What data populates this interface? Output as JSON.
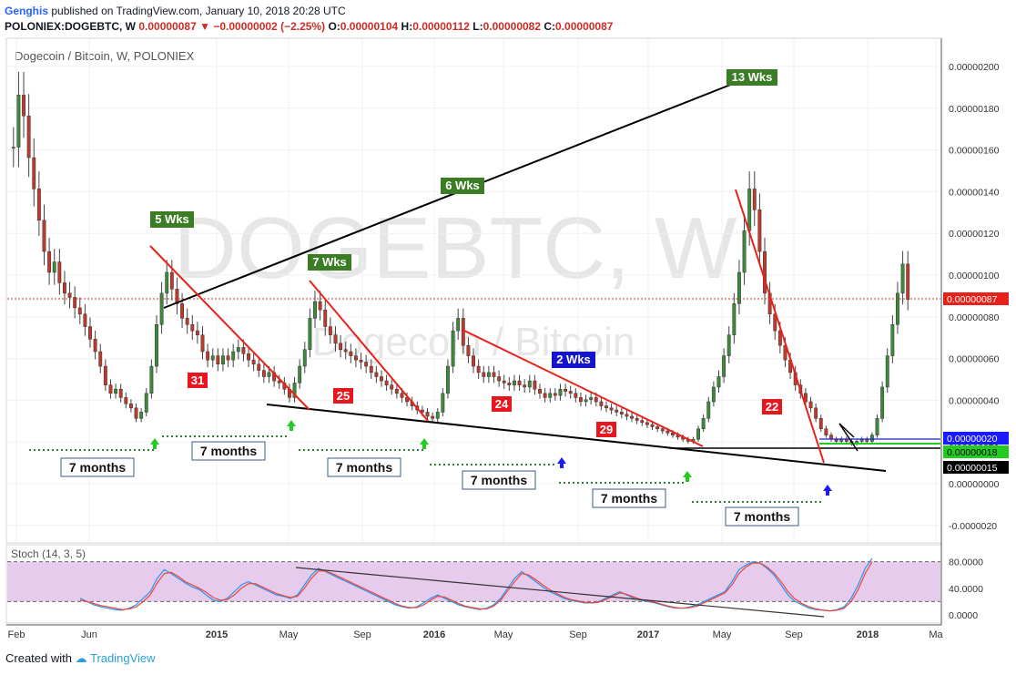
{
  "header": {
    "author": "Genghis",
    "published": "published on TradingView.com, January 10, 2018 20:28 UTC",
    "symbol": "POLONIEX:DOGEBTC, W",
    "last": "0.00000087",
    "change": "−0.00000002 (−2.25%)",
    "o_label": "O:",
    "o": "0.00000104",
    "h_label": "H:",
    "h": "0.00000112",
    "l_label": "L:",
    "l": "0.00000082",
    "c_label": "C:",
    "c": "0.00000087"
  },
  "footer": {
    "created_with": "Created with",
    "brand": "TradingView"
  },
  "colors": {
    "up": "#3c8a3a",
    "down": "#c0392b",
    "trend_red": "#e8211a",
    "stoch_k": "#2196f3",
    "stoch_d": "#f44336",
    "stoch_band": "#e1bee7",
    "green_label": "#3a7d25",
    "blue_label": "#1414cc"
  },
  "chart_data": [
    {
      "type": "candlestick",
      "title": "Dogecoin / Bitcoin, W, POLONIEX",
      "watermark": "DOGEBTC, W",
      "watermark_sub": "Dogecoin / Bitcoin",
      "y_axis_ticks": [
        "0.00000200",
        "0.00000180",
        "0.00000160",
        "0.00000140",
        "0.00000120",
        "0.00000100",
        "0.00000080",
        "0.00000060",
        "0.00000040",
        "0.00000020",
        "0.00000000",
        "-0.0000020"
      ],
      "x_axis_ticks": [
        "Feb",
        "Jun",
        "2015",
        "May",
        "Sep",
        "2016",
        "May",
        "Sep",
        "2017",
        "May",
        "Sep",
        "2018",
        "Ma"
      ],
      "price_markers": [
        {
          "value": "0.00000087",
          "role": "last"
        },
        {
          "value": "0.00000020",
          "role": "blue line"
        },
        {
          "value": "0.00000018",
          "role": "green line"
        },
        {
          "value": "0.00000015",
          "role": "support"
        }
      ],
      "annotations": {
        "wk_labels": [
          "5 Wks",
          "7 Wks",
          "6 Wks",
          "13 Wks",
          "2 Wks"
        ],
        "count_labels": [
          "31",
          "25",
          "24",
          "29",
          "22"
        ],
        "month_labels": [
          "7 months",
          "7 months",
          "7 months",
          "7 months",
          "7 months",
          "7 months"
        ]
      },
      "series": [
        {
          "values": [
            1.6,
            1.85,
            1.75,
            1.55,
            1.4,
            1.25,
            1.1,
            1.0,
            1.05,
            0.95,
            0.9,
            0.88,
            0.83,
            0.8,
            0.74,
            0.68,
            0.62,
            0.55,
            0.46,
            0.42,
            0.44,
            0.4,
            0.37,
            0.35,
            0.3,
            0.33,
            0.42,
            0.55,
            0.75,
            0.9,
            1.0,
            0.92,
            0.85,
            0.78,
            0.75,
            0.72,
            0.7,
            0.62,
            0.58,
            0.6,
            0.56,
            0.6,
            0.58,
            0.62,
            0.64,
            0.61,
            0.58,
            0.56,
            0.53,
            0.5,
            0.52,
            0.48,
            0.47,
            0.44,
            0.4,
            0.47,
            0.55,
            0.63,
            0.78,
            0.86,
            0.82,
            0.74,
            0.7,
            0.66,
            0.63,
            0.62,
            0.6,
            0.58,
            0.57,
            0.55,
            0.52,
            0.5,
            0.48,
            0.46,
            0.44,
            0.42,
            0.4,
            0.38,
            0.36,
            0.34,
            0.33,
            0.31,
            0.3,
            0.33,
            0.42,
            0.55,
            0.72,
            0.78,
            0.65,
            0.6,
            0.55,
            0.52,
            0.5,
            0.52,
            0.5,
            0.48,
            0.47,
            0.46,
            0.48,
            0.46,
            0.45,
            0.48,
            0.44,
            0.42,
            0.4,
            0.42,
            0.41,
            0.44,
            0.43,
            0.42,
            0.4,
            0.38,
            0.39,
            0.4,
            0.38,
            0.36,
            0.35,
            0.34,
            0.33,
            0.32,
            0.31,
            0.3,
            0.29,
            0.28,
            0.27,
            0.26,
            0.25,
            0.24,
            0.23,
            0.22,
            0.21,
            0.2,
            0.19,
            0.2,
            0.25,
            0.3,
            0.38,
            0.45,
            0.5,
            0.6,
            0.7,
            0.85,
            1.0,
            1.2,
            1.4,
            1.3,
            1.1,
            0.9,
            0.8,
            0.72,
            0.65,
            0.58,
            0.52,
            0.46,
            0.42,
            0.38,
            0.35,
            0.3,
            0.25,
            0.22,
            0.2,
            0.19,
            0.2,
            0.19,
            0.18,
            0.19,
            0.2,
            0.19,
            0.22,
            0.3,
            0.45,
            0.6,
            0.75,
            0.9,
            1.04,
            0.87
          ]
        }
      ]
    },
    {
      "type": "line",
      "title": "Stoch (14, 3, 5)",
      "y_axis_ticks": [
        "80.0000",
        "40.0000",
        "0.0000"
      ],
      "band": [
        20,
        80
      ],
      "series": [
        {
          "name": "%K",
          "values": [
            25,
            20,
            15,
            12,
            10,
            8,
            7,
            10,
            15,
            25,
            35,
            55,
            68,
            62,
            55,
            48,
            42,
            38,
            30,
            22,
            20,
            25,
            35,
            45,
            50,
            45,
            40,
            35,
            30,
            28,
            25,
            30,
            45,
            60,
            70,
            65,
            60,
            55,
            50,
            45,
            40,
            35,
            30,
            25,
            20,
            15,
            12,
            10,
            12,
            18,
            25,
            30,
            25,
            20,
            15,
            12,
            10,
            8,
            10,
            15,
            25,
            40,
            55,
            65,
            58,
            50,
            42,
            35,
            30,
            25,
            22,
            20,
            18,
            18,
            20,
            25,
            30,
            35,
            30,
            25,
            22,
            20,
            18,
            15,
            12,
            10,
            10,
            12,
            15,
            20,
            25,
            30,
            35,
            50,
            68,
            75,
            80,
            78,
            70,
            60,
            45,
            30,
            20,
            15,
            10,
            8,
            7,
            6,
            8,
            12,
            25,
            45,
            70,
            85
          ]
        },
        {
          "name": "%D",
          "values": [
            22,
            20,
            17,
            14,
            12,
            10,
            8,
            9,
            12,
            20,
            30,
            48,
            62,
            64,
            58,
            50,
            45,
            40,
            34,
            26,
            22,
            23,
            30,
            40,
            47,
            47,
            42,
            37,
            32,
            29,
            26,
            28,
            40,
            55,
            66,
            66,
            62,
            57,
            52,
            47,
            42,
            37,
            32,
            27,
            22,
            17,
            13,
            11,
            11,
            15,
            22,
            28,
            27,
            22,
            17,
            13,
            11,
            9,
            9,
            13,
            22,
            36,
            50,
            62,
            60,
            53,
            45,
            38,
            32,
            27,
            23,
            21,
            19,
            18,
            19,
            23,
            28,
            33,
            31,
            27,
            23,
            21,
            19,
            16,
            13,
            11,
            10,
            11,
            13,
            18,
            23,
            28,
            33,
            45,
            62,
            72,
            78,
            78,
            72,
            63,
            50,
            35,
            24,
            17,
            12,
            9,
            7,
            6,
            7,
            10,
            20,
            38,
            62,
            80
          ]
        }
      ]
    }
  ]
}
